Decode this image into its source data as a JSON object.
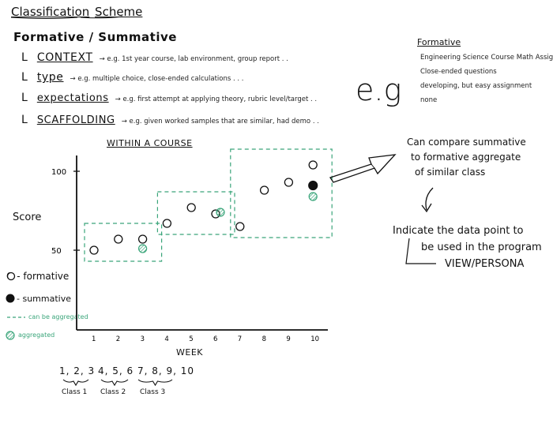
{
  "title": {
    "part1": "Classification",
    "part2": "Scheme"
  },
  "section_heading": "Formative / Summative",
  "criteria": [
    {
      "bullet": "L",
      "label": "CONTEXT",
      "desc": "→ e.g. 1st year course, lab environment, group report . ."
    },
    {
      "bullet": "L",
      "label": "type",
      "desc": "→ e.g. multiple choice, close-ended calculations . . ."
    },
    {
      "bullet": "L",
      "label": "expectations",
      "desc": "→ e.g. first attempt at applying theory, rubric level/target . ."
    },
    {
      "bullet": "L",
      "label": "SCAFFOLDING",
      "desc": "→ e.g. given worked samples that are similar, had demo . ."
    }
  ],
  "eg_big": "e.g",
  "formative_box": {
    "heading": "Formative",
    "items": [
      "Engineering Science Course Math Assigned",
      "Close-ended questions",
      "developing, but easy assignment",
      "none"
    ]
  },
  "chart_title": "WITHIN A COURSE",
  "annotation_compare": [
    "Can compare summative",
    "to formative aggregate",
    "of similar class"
  ],
  "annotation_indicate": [
    "Indicate the data point to",
    "be used in the program",
    "VIEW/PERSONA"
  ],
  "legend": [
    {
      "symbol": "open-circle",
      "label": "O - formative"
    },
    {
      "symbol": "filled-circle",
      "label": "- summative"
    },
    {
      "symbol": "dashed-line",
      "label": "can be aggregated"
    },
    {
      "symbol": "hatched-circle",
      "label": "aggregated"
    }
  ],
  "class_groups": [
    {
      "weeks": "1, 2, 3",
      "label": "Class 1"
    },
    {
      "weeks": "4, 5, 6",
      "label": "Class 2"
    },
    {
      "weeks": "7, 8, 9, 10",
      "label": "Class 3"
    }
  ],
  "colors": {
    "ink": "#111111",
    "green": "#3aa57a"
  },
  "chart_data": {
    "type": "scatter",
    "title": "WITHIN A COURSE",
    "xlabel": "WEEK",
    "ylabel": "Score",
    "x_ticks": [
      "1",
      "2",
      "3",
      "4",
      "5",
      "6",
      "7",
      "8",
      "9",
      "10"
    ],
    "y_ticks": [
      "100",
      "50"
    ],
    "ylim": [
      40,
      110
    ],
    "series": [
      {
        "name": "formative",
        "points": [
          [
            1,
            50
          ],
          [
            2,
            57
          ],
          [
            3,
            57
          ],
          [
            4,
            67
          ],
          [
            5,
            77
          ],
          [
            6,
            73
          ],
          [
            7,
            65
          ],
          [
            8,
            88
          ],
          [
            9,
            93
          ],
          [
            10,
            104
          ]
        ]
      },
      {
        "name": "summative",
        "points": [
          [
            10,
            91
          ]
        ]
      },
      {
        "name": "aggregated",
        "points": [
          [
            3,
            51
          ],
          [
            6,
            74
          ],
          [
            10,
            84
          ]
        ]
      }
    ],
    "groups": [
      {
        "label": "Class 1",
        "weeks": [
          1,
          3
        ]
      },
      {
        "label": "Class 2",
        "weeks": [
          4,
          6
        ]
      },
      {
        "label": "Class 3",
        "weeks": [
          7,
          10
        ]
      }
    ]
  }
}
